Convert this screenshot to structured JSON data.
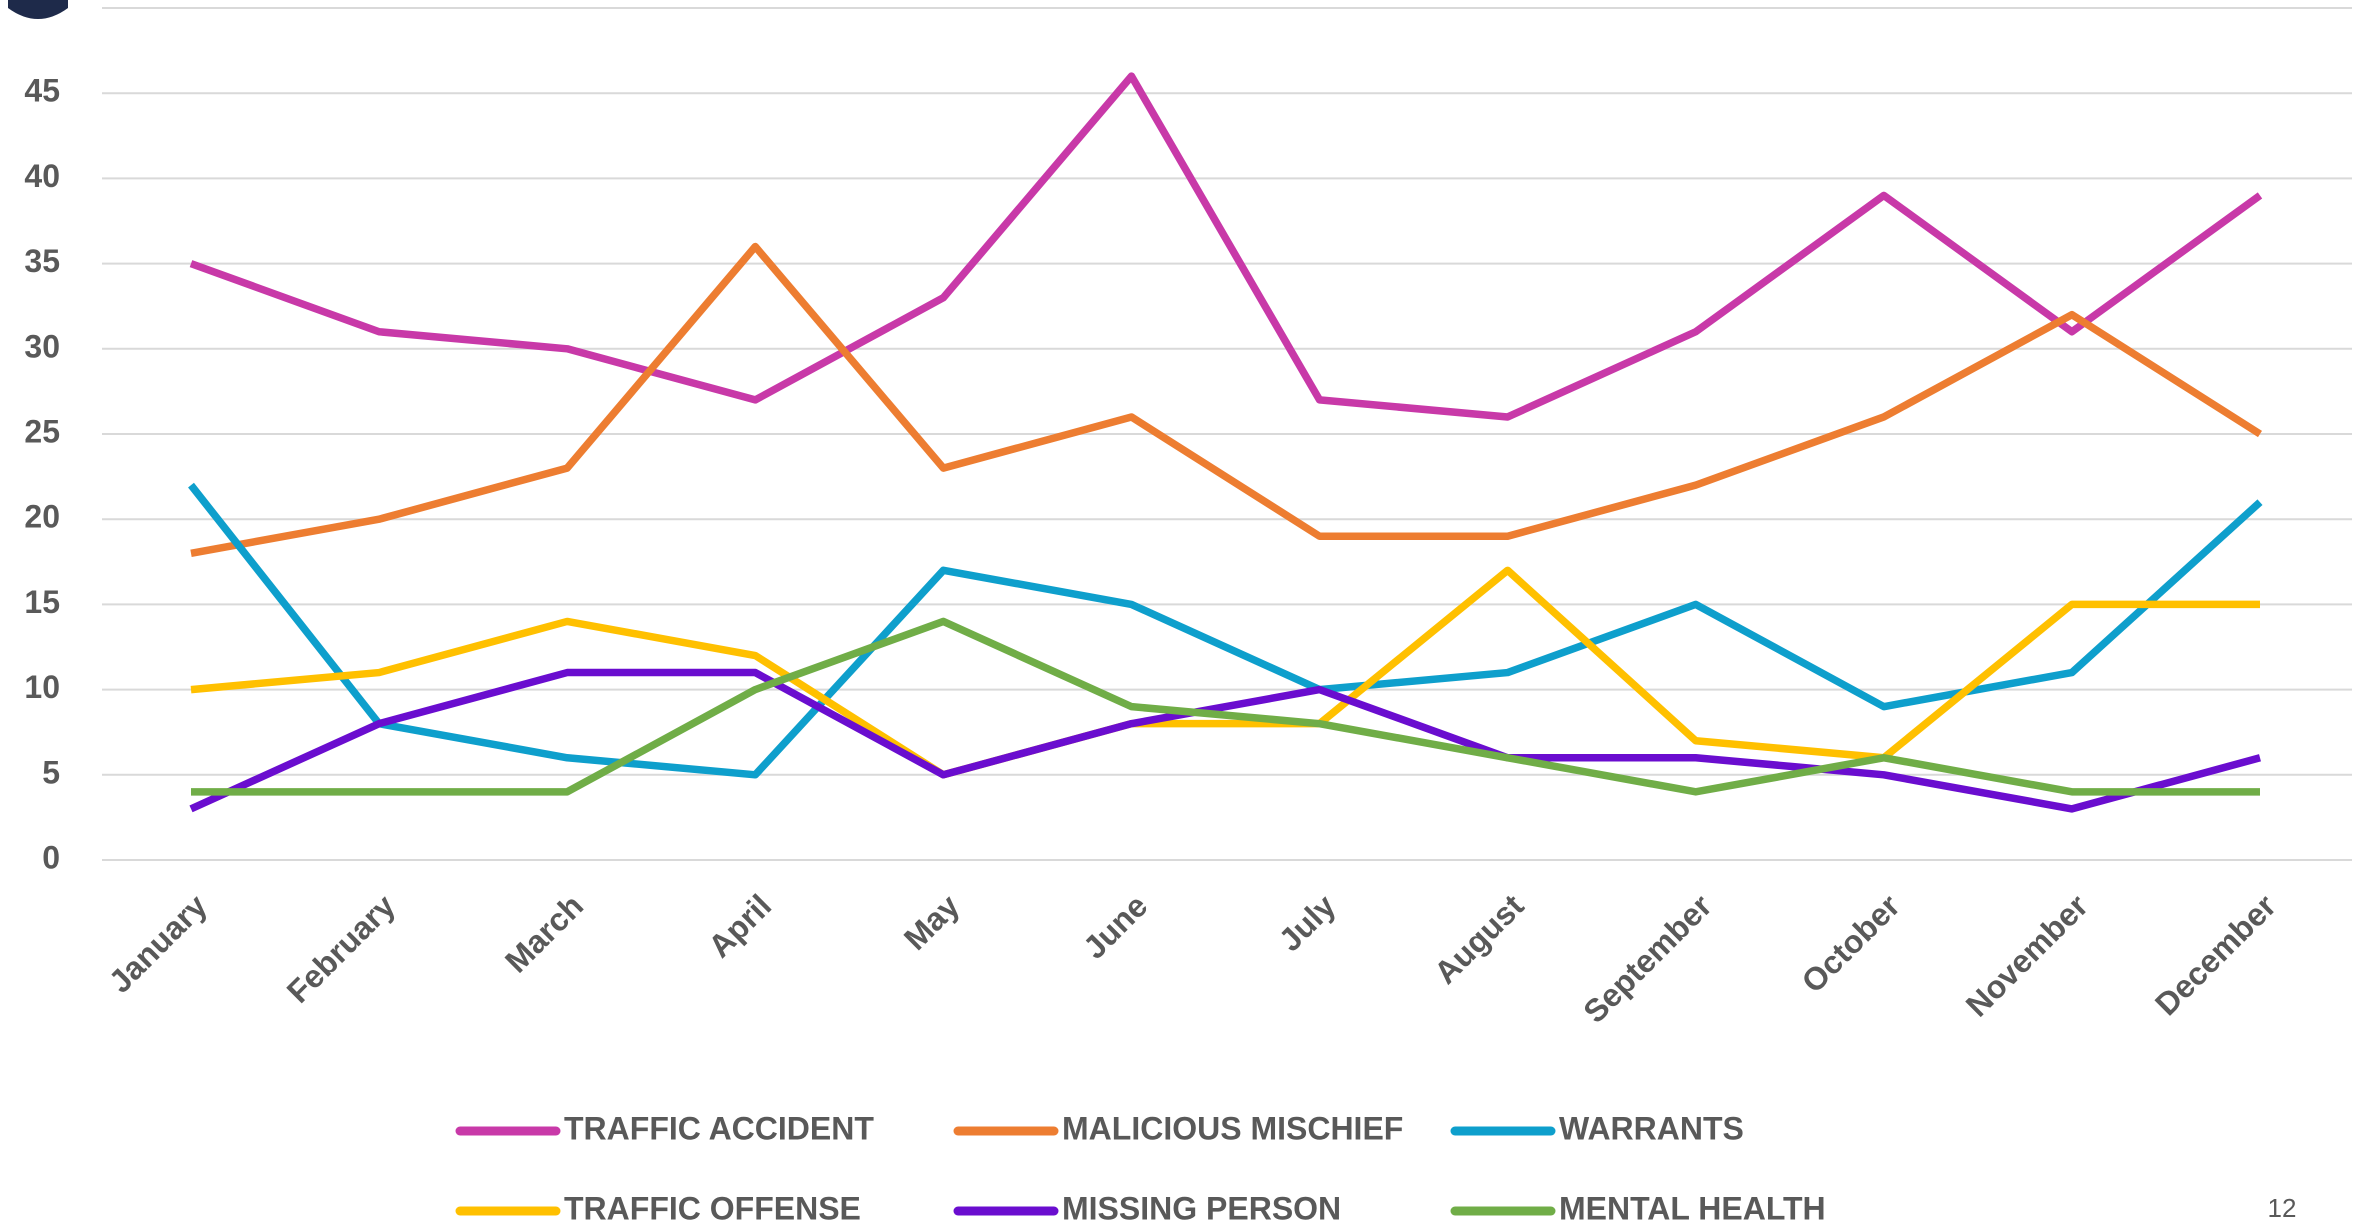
{
  "chart_data": {
    "type": "line",
    "categories": [
      "January",
      "February",
      "March",
      "April",
      "May",
      "June",
      "July",
      "August",
      "September",
      "October",
      "November",
      "December"
    ],
    "series": [
      {
        "name": "TRAFFIC ACCIDENT",
        "color": "#c839a8",
        "values": [
          35,
          31,
          30,
          27,
          33,
          46,
          27,
          26,
          31,
          39,
          31,
          39
        ]
      },
      {
        "name": "MALICIOUS MISCHIEF",
        "color": "#ed7d31",
        "values": [
          18,
          20,
          23,
          36,
          23,
          26,
          19,
          19,
          22,
          26,
          32,
          25
        ]
      },
      {
        "name": "WARRANTS",
        "color": "#0e9fcc",
        "values": [
          22,
          8,
          6,
          5,
          17,
          15,
          10,
          11,
          15,
          9,
          11,
          21
        ]
      },
      {
        "name": "TRAFFIC OFFENSE",
        "color": "#ffc000",
        "values": [
          10,
          11,
          14,
          12,
          5,
          8,
          8,
          17,
          7,
          6,
          15,
          15
        ]
      },
      {
        "name": "MISSING PERSON",
        "color": "#6a0dcf",
        "values": [
          3,
          8,
          11,
          11,
          5,
          8,
          10,
          6,
          6,
          5,
          3,
          6
        ]
      },
      {
        "name": "MENTAL HEALTH",
        "color": "#70ad47",
        "values": [
          4,
          4,
          4,
          10,
          14,
          9,
          8,
          6,
          4,
          6,
          4,
          4
        ]
      }
    ],
    "ylim": [
      0,
      50
    ],
    "yticks": [
      0,
      5,
      10,
      15,
      20,
      25,
      30,
      35,
      40,
      45
    ],
    "grid": true
  },
  "page_number": "12"
}
